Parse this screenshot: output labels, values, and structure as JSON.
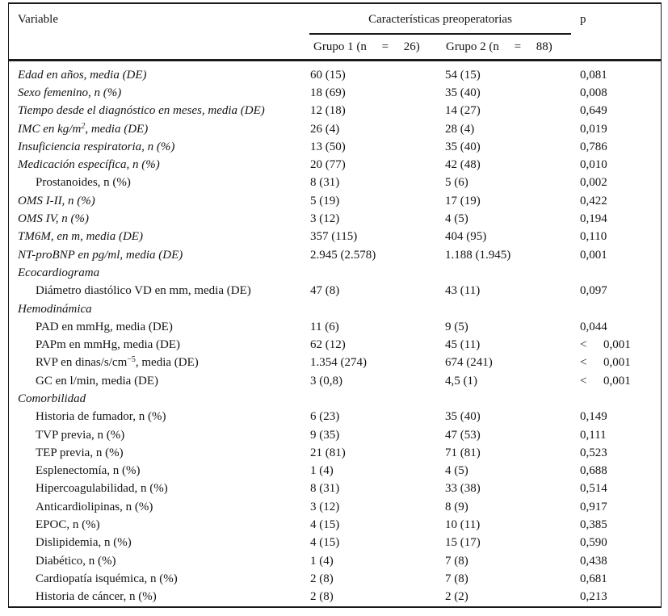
{
  "chart_data": {
    "type": "table",
    "header": {
      "variable": "Variable",
      "spanner": "Características preoperatorias",
      "group1": "Grupo 1 (n  =  26)",
      "group2": "Grupo 2 (n  =  88)",
      "p": "p"
    },
    "rows": [
      {
        "label": "Edad en años, media (DE)",
        "italic": true,
        "g1": "60 (15)",
        "g2": "54 (15)",
        "p": "0,081"
      },
      {
        "label": "Sexo femenino, n (%)",
        "italic": true,
        "g1": "18 (69)",
        "g2": "35 (40)",
        "p": "0,008"
      },
      {
        "label": "Tiempo desde el diagnóstico en meses, media (DE)",
        "italic": true,
        "g1": "12 (18)",
        "g2": "14 (27)",
        "p": "0,649"
      },
      {
        "label": "IMC en kg/m",
        "sup": "2",
        "label_post": ", media (DE)",
        "italic": true,
        "g1": "26 (4)",
        "g2": "28 (4)",
        "p": "0,019"
      },
      {
        "label": "Insuficiencia respiratoria, n (%)",
        "italic": true,
        "g1": "13 (50)",
        "g2": "35 (40)",
        "p": "0,786"
      },
      {
        "label": "Medicación específica, n (%)",
        "italic": true,
        "g1": "20 (77)",
        "g2": "42 (48)",
        "p": "0,010"
      },
      {
        "label": "Prostanoides, n (%)",
        "indent": true,
        "g1": "8 (31)",
        "g2": "5 (6)",
        "p": "0,002"
      },
      {
        "label": "OMS I-II, n (%)",
        "italic": true,
        "g1": "5 (19)",
        "g2": "17 (19)",
        "p": "0,422"
      },
      {
        "label": "OMS IV, n (%)",
        "italic": true,
        "g1": "3 (12)",
        "g2": "4 (5)",
        "p": "0,194"
      },
      {
        "label": "TM6M, en m, media (DE)",
        "italic": true,
        "g1": "357 (115)",
        "g2": "404 (95)",
        "p": "0,110"
      },
      {
        "label": "NT-proBNP en pg/ml, media (DE)",
        "italic": true,
        "g1": "2.945 (2.578)",
        "g2": "1.188 (1.945)",
        "p": "0,001"
      },
      {
        "label": "Ecocardiograma",
        "italic": true,
        "section": true
      },
      {
        "label": "Diámetro diastólico VD en mm, media (DE)",
        "indent": true,
        "g1": "47 (8)",
        "g2": "43 (11)",
        "p": "0,097"
      },
      {
        "label": "Hemodinámica",
        "italic": true,
        "section": true
      },
      {
        "label": "PAD en mmHg, media (DE)",
        "indent": true,
        "g1": "11 (6)",
        "g2": "9 (5)",
        "p": "0,044"
      },
      {
        "label": "PAPm en mmHg, media (DE)",
        "indent": true,
        "g1": "62 (12)",
        "g2": "45 (11)",
        "p_prefix": "<",
        "p": "0,001"
      },
      {
        "label": "RVP en dinas/s/cm",
        "sup": "−5",
        "label_post": ", media (DE)",
        "indent": true,
        "g1": "1.354 (274)",
        "g2": "674 (241)",
        "p_prefix": "<",
        "p": "0,001"
      },
      {
        "label": "GC en l/min, media (DE)",
        "indent": true,
        "g1": "3 (0,8)",
        "g2": "4,5 (1)",
        "p_prefix": "<",
        "p": "0,001"
      },
      {
        "label": "Comorbilidad",
        "italic": true,
        "section": true
      },
      {
        "label": "Historia de fumador, n (%)",
        "indent": true,
        "g1": "6 (23)",
        "g2": "35 (40)",
        "p": "0,149"
      },
      {
        "label": "TVP previa, n (%)",
        "indent": true,
        "g1": "9 (35)",
        "g2": "47 (53)",
        "p": "0,111"
      },
      {
        "label": "TEP previa, n (%)",
        "indent": true,
        "g1": "21 (81)",
        "g2": "71 (81)",
        "p": "0,523"
      },
      {
        "label": "Esplenectomía, n (%)",
        "indent": true,
        "g1": "1 (4)",
        "g2": "4 (5)",
        "p": "0,688"
      },
      {
        "label": "Hipercoagulabilidad, n (%)",
        "indent": true,
        "g1": "8 (31)",
        "g2": "33 (38)",
        "p": "0,514"
      },
      {
        "label": "Anticardiolipinas, n (%)",
        "indent": true,
        "g1": "3 (12)",
        "g2": "8 (9)",
        "p": "0,917"
      },
      {
        "label": "EPOC, n (%)",
        "indent": true,
        "g1": "4 (15)",
        "g2": "10 (11)",
        "p": "0,385"
      },
      {
        "label": "Dislipidemia, n (%)",
        "indent": true,
        "g1": "4 (15)",
        "g2": "15 (17)",
        "p": "0,590"
      },
      {
        "label": "Diabético, n (%)",
        "indent": true,
        "g1": "1 (4)",
        "g2": "7 (8)",
        "p": "0,438"
      },
      {
        "label": "Cardiopatía isquémica, n (%)",
        "indent": true,
        "g1": "2 (8)",
        "g2": "7 (8)",
        "p": "0,681"
      },
      {
        "label": "Historia de cáncer, n (%)",
        "indent": true,
        "g1": "2 (8)",
        "g2": "2 (2)",
        "p": "0,213"
      }
    ]
  },
  "colors": {
    "text": "#141414",
    "rule": "#1a1a1a",
    "background": "#ffffff"
  }
}
